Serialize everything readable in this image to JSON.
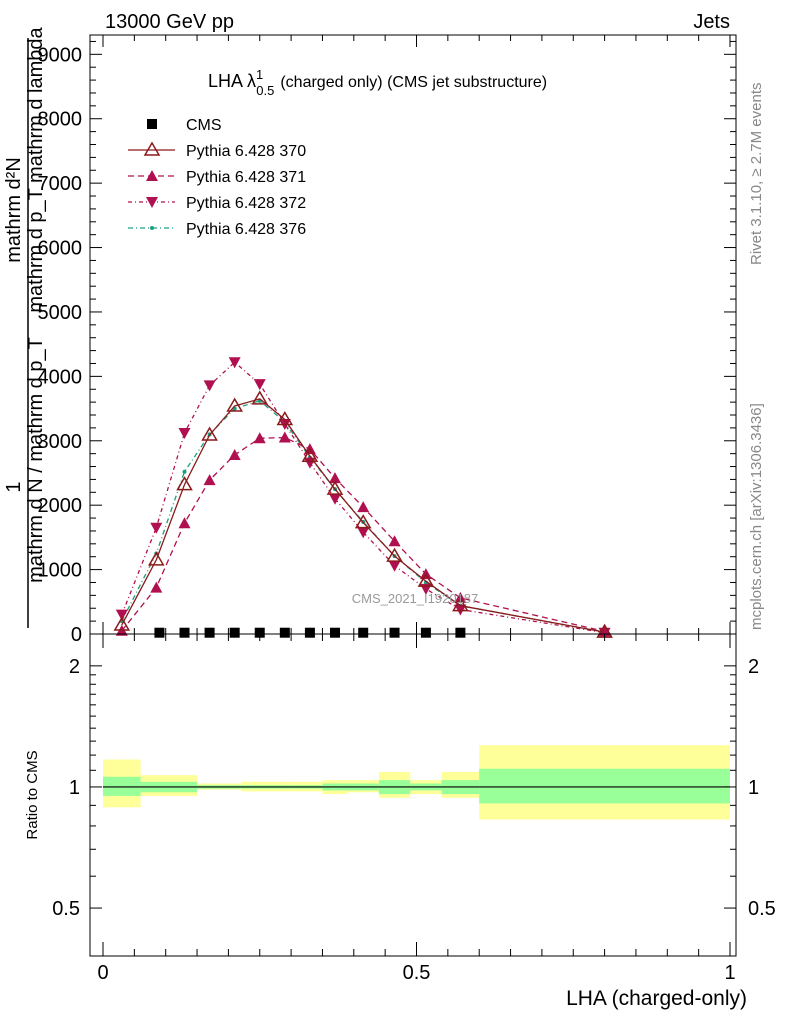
{
  "header": {
    "left": "13000 GeV pp",
    "right": "Jets"
  },
  "side_labels": {
    "rivet": "Rivet 3.1.10, ≥ 2.7M events",
    "mcplots": "mcplots.cern.ch [arXiv:1306.3436]"
  },
  "watermark": "CMS_2021_I1920187",
  "chart_data": [
    {
      "type": "line",
      "title": "LHA λ¹₀.₅ (charged only) (CMS jet substructure)",
      "title_main": "LHA λ",
      "title_sup": "1",
      "title_sub": "0.5",
      "title_rest": "(charged only) (CMS jet substructure)",
      "ylabel_numerator": "mathrm d²N",
      "ylabel_denominator": "mathrm d p_T mathrm d lambda",
      "ylabel_prefix_num": "1",
      "ylabel_prefix_den": "mathrm d N / mathrm d p_T",
      "xlim": [
        0,
        1
      ],
      "ylim": [
        0,
        9300
      ],
      "yticks": [
        0,
        1000,
        2000,
        3000,
        4000,
        5000,
        6000,
        7000,
        8000,
        9000
      ],
      "ytick_labels": [
        "0",
        "1000",
        "2000",
        "3000",
        "4000",
        "5000",
        "6000",
        "7000",
        "8000",
        "9000"
      ],
      "legend_position": "top-left",
      "series": [
        {
          "name": "CMS",
          "color": "#000000",
          "marker": "square",
          "x": [
            0.09,
            0.13,
            0.17,
            0.21,
            0.25,
            0.29,
            0.33,
            0.37,
            0.415,
            0.465,
            0.515,
            0.57
          ],
          "y": [
            20,
            20,
            20,
            20,
            20,
            20,
            20,
            20,
            20,
            20,
            20,
            20
          ]
        },
        {
          "name": "Pythia 6.428 370",
          "color": "#8b1a1a",
          "marker": "triangle-up-open",
          "dash": "none",
          "x": [
            0.03,
            0.085,
            0.13,
            0.17,
            0.21,
            0.25,
            0.29,
            0.33,
            0.37,
            0.415,
            0.465,
            0.515,
            0.57,
            0.8
          ],
          "y": [
            140,
            1150,
            2320,
            3090,
            3540,
            3650,
            3330,
            2760,
            2250,
            1730,
            1210,
            820,
            440,
            30
          ]
        },
        {
          "name": "Pythia 6.428 371",
          "color": "#b0104f",
          "marker": "triangle-up",
          "dash": "6,4",
          "x": [
            0.03,
            0.085,
            0.13,
            0.17,
            0.21,
            0.25,
            0.29,
            0.33,
            0.37,
            0.415,
            0.465,
            0.515,
            0.57,
            0.8
          ],
          "y": [
            50,
            720,
            1720,
            2390,
            2780,
            3040,
            3050,
            2870,
            2420,
            1970,
            1440,
            930,
            560,
            40
          ]
        },
        {
          "name": "Pythia 6.428 372",
          "color": "#b0104f",
          "marker": "triangle-down",
          "dash": "4,3,1,3",
          "x": [
            0.03,
            0.085,
            0.13,
            0.17,
            0.21,
            0.25,
            0.29,
            0.33,
            0.37,
            0.415,
            0.465,
            0.515,
            0.57,
            0.8
          ],
          "y": [
            300,
            1650,
            3120,
            3860,
            4220,
            3880,
            3260,
            2660,
            2100,
            1580,
            1060,
            700,
            380,
            20
          ]
        },
        {
          "name": "Pythia 6.428 376",
          "color": "#1aa080",
          "marker": "dot",
          "dash": "5,3,1,3",
          "x": [
            0.03,
            0.085,
            0.13,
            0.17,
            0.21,
            0.25,
            0.29,
            0.33,
            0.37,
            0.415,
            0.465,
            0.515,
            0.57,
            0.8
          ],
          "y": [
            200,
            1250,
            2520,
            3100,
            3500,
            3620,
            3290,
            2740,
            2250,
            1740,
            1210,
            800,
            440,
            30
          ]
        }
      ]
    },
    {
      "type": "area",
      "xlabel": "LHA (charged-only)",
      "ylabel": "Ratio to CMS",
      "xlim": [
        0,
        1
      ],
      "ylim": [
        0.38,
        2.4
      ],
      "y_scale": "log",
      "xticks": [
        0,
        0.5,
        1
      ],
      "xtick_labels": [
        "0",
        "0.5",
        "1"
      ],
      "yticks": [
        0.5,
        1,
        2
      ],
      "ytick_labels": [
        "0.5",
        "1",
        "2"
      ],
      "bands": {
        "x_edges": [
          0,
          0.06,
          0.15,
          0.22,
          0.3,
          0.35,
          0.39,
          0.44,
          0.49,
          0.54,
          0.6,
          1.0
        ],
        "inner_low": [
          0.95,
          0.97,
          0.99,
          0.99,
          0.99,
          0.98,
          0.98,
          0.96,
          0.98,
          0.96,
          0.91
        ],
        "inner_high": [
          1.06,
          1.03,
          1.01,
          1.01,
          1.01,
          1.02,
          1.02,
          1.04,
          1.02,
          1.04,
          1.11
        ],
        "outer_low": [
          0.89,
          0.95,
          0.985,
          0.975,
          0.975,
          0.96,
          0.97,
          0.94,
          0.96,
          0.94,
          0.83
        ],
        "outer_high": [
          1.17,
          1.07,
          1.02,
          1.03,
          1.03,
          1.04,
          1.04,
          1.09,
          1.04,
          1.09,
          1.27
        ]
      }
    }
  ]
}
